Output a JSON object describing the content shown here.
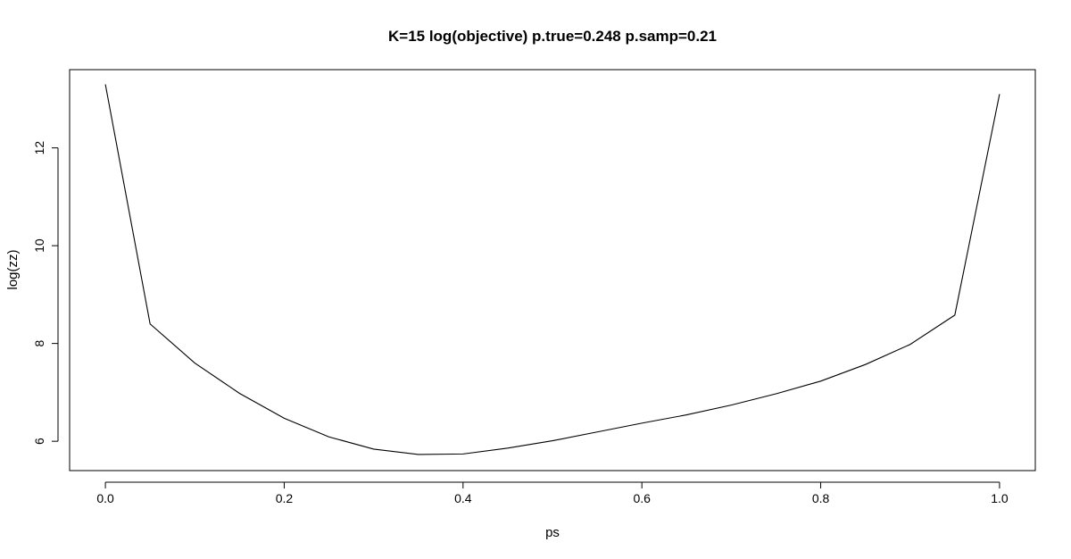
{
  "chart_data": {
    "type": "line",
    "title": "K=15 log(objective) p.true=0.248 p.samp=0.21",
    "xlabel": "ps",
    "ylabel": "log(zz)",
    "xlim": [
      -0.04,
      1.04
    ],
    "ylim": [
      5.4,
      13.6
    ],
    "xticks": [
      0.0,
      0.2,
      0.4,
      0.6,
      0.8,
      1.0
    ],
    "xtick_labels": [
      "0.0",
      "0.2",
      "0.4",
      "0.6",
      "0.8",
      "1.0"
    ],
    "yticks": [
      6,
      8,
      10,
      12
    ],
    "ytick_labels": [
      "6",
      "8",
      "10",
      "12"
    ],
    "grid": false,
    "series": [
      {
        "color": "#000000",
        "x": [
          0.0,
          0.05,
          0.1,
          0.15,
          0.2,
          0.25,
          0.3,
          0.35,
          0.4,
          0.45,
          0.5,
          0.55,
          0.6,
          0.65,
          0.7,
          0.75,
          0.8,
          0.85,
          0.9,
          0.95,
          1.0
        ],
        "y": [
          13.3,
          8.4,
          7.6,
          6.98,
          6.47,
          6.09,
          5.84,
          5.73,
          5.74,
          5.86,
          6.01,
          6.19,
          6.37,
          6.54,
          6.74,
          6.97,
          7.23,
          7.57,
          7.98,
          8.58,
          13.1
        ]
      }
    ]
  }
}
